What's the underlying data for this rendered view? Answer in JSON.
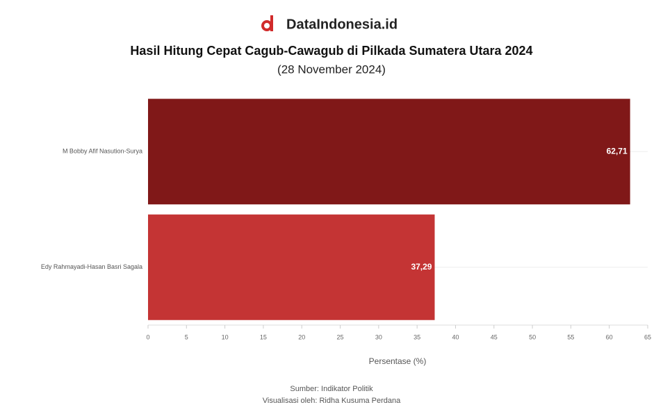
{
  "brand": "DataIndonesia.id",
  "chart_data": {
    "type": "hbar",
    "title": "Hasil Hitung Cepat Cagub-Cawagub di Pilkada Sumatera Utara 2024",
    "subtitle": "(28 November 2024)",
    "categories": [
      "M Bobby Afif Nasution-Surya",
      "Edy Rahmayadi-Hasan Basri Sagala"
    ],
    "values": [
      62.71,
      37.29
    ],
    "value_labels": [
      "62,71",
      "37,29"
    ],
    "colors": [
      "#801818",
      "#c43434"
    ],
    "xlim": [
      0,
      65
    ],
    "xticks": [
      0,
      5,
      10,
      15,
      20,
      25,
      30,
      35,
      40,
      45,
      50,
      55,
      60,
      65
    ],
    "x_label": "Persentase (%)",
    "grid": true,
    "notes": [
      "Sumber: Indikator Politik",
      "Visualisasi oleh: Ridha Kusuma Perdana"
    ]
  }
}
